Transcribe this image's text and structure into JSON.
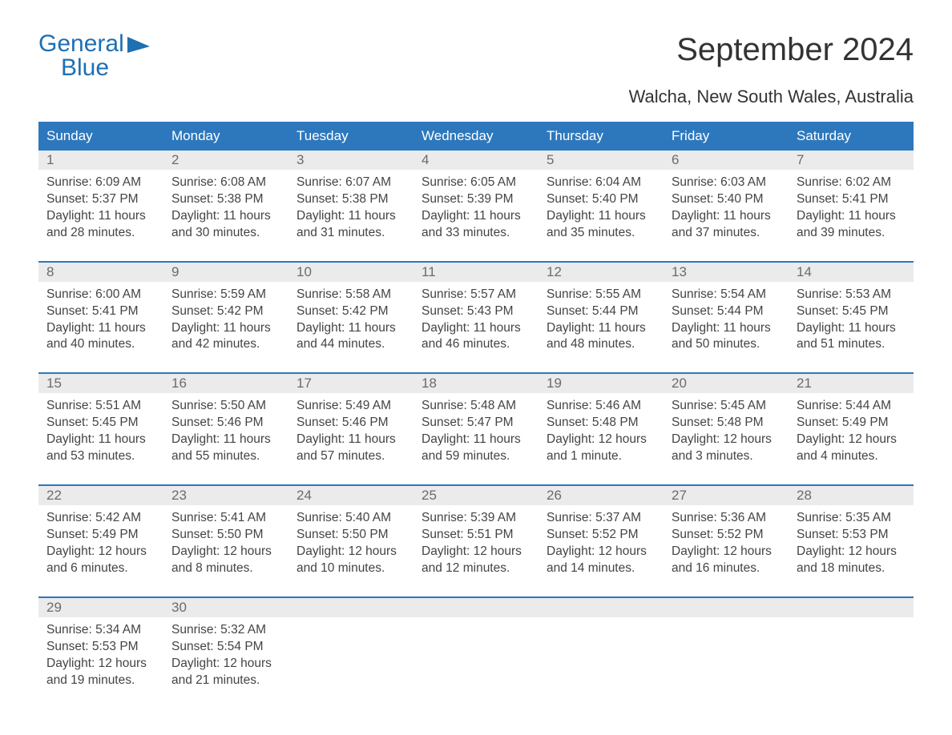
{
  "logo": {
    "line1": "General",
    "line2": "Blue",
    "text_color": "#1f6fb2",
    "shape_color": "#1f6fb2"
  },
  "title": "September 2024",
  "location": "Walcha, New South Wales, Australia",
  "colors": {
    "header_bg": "#2d78bd",
    "header_text": "#ffffff",
    "daynum_bg": "#ebebeb",
    "daynum_text": "#6b6b6b",
    "body_text": "#444444",
    "week_border": "#2d78bd",
    "page_bg": "#ffffff"
  },
  "weekdays": [
    "Sunday",
    "Monday",
    "Tuesday",
    "Wednesday",
    "Thursday",
    "Friday",
    "Saturday"
  ],
  "labels": {
    "sunrise": "Sunrise:",
    "sunset": "Sunset:",
    "daylight": "Daylight:"
  },
  "weeks": [
    [
      {
        "num": "1",
        "sunrise": "6:09 AM",
        "sunset": "5:37 PM",
        "daylight": "11 hours and 28 minutes."
      },
      {
        "num": "2",
        "sunrise": "6:08 AM",
        "sunset": "5:38 PM",
        "daylight": "11 hours and 30 minutes."
      },
      {
        "num": "3",
        "sunrise": "6:07 AM",
        "sunset": "5:38 PM",
        "daylight": "11 hours and 31 minutes."
      },
      {
        "num": "4",
        "sunrise": "6:05 AM",
        "sunset": "5:39 PM",
        "daylight": "11 hours and 33 minutes."
      },
      {
        "num": "5",
        "sunrise": "6:04 AM",
        "sunset": "5:40 PM",
        "daylight": "11 hours and 35 minutes."
      },
      {
        "num": "6",
        "sunrise": "6:03 AM",
        "sunset": "5:40 PM",
        "daylight": "11 hours and 37 minutes."
      },
      {
        "num": "7",
        "sunrise": "6:02 AM",
        "sunset": "5:41 PM",
        "daylight": "11 hours and 39 minutes."
      }
    ],
    [
      {
        "num": "8",
        "sunrise": "6:00 AM",
        "sunset": "5:41 PM",
        "daylight": "11 hours and 40 minutes."
      },
      {
        "num": "9",
        "sunrise": "5:59 AM",
        "sunset": "5:42 PM",
        "daylight": "11 hours and 42 minutes."
      },
      {
        "num": "10",
        "sunrise": "5:58 AM",
        "sunset": "5:42 PM",
        "daylight": "11 hours and 44 minutes."
      },
      {
        "num": "11",
        "sunrise": "5:57 AM",
        "sunset": "5:43 PM",
        "daylight": "11 hours and 46 minutes."
      },
      {
        "num": "12",
        "sunrise": "5:55 AM",
        "sunset": "5:44 PM",
        "daylight": "11 hours and 48 minutes."
      },
      {
        "num": "13",
        "sunrise": "5:54 AM",
        "sunset": "5:44 PM",
        "daylight": "11 hours and 50 minutes."
      },
      {
        "num": "14",
        "sunrise": "5:53 AM",
        "sunset": "5:45 PM",
        "daylight": "11 hours and 51 minutes."
      }
    ],
    [
      {
        "num": "15",
        "sunrise": "5:51 AM",
        "sunset": "5:45 PM",
        "daylight": "11 hours and 53 minutes."
      },
      {
        "num": "16",
        "sunrise": "5:50 AM",
        "sunset": "5:46 PM",
        "daylight": "11 hours and 55 minutes."
      },
      {
        "num": "17",
        "sunrise": "5:49 AM",
        "sunset": "5:46 PM",
        "daylight": "11 hours and 57 minutes."
      },
      {
        "num": "18",
        "sunrise": "5:48 AM",
        "sunset": "5:47 PM",
        "daylight": "11 hours and 59 minutes."
      },
      {
        "num": "19",
        "sunrise": "5:46 AM",
        "sunset": "5:48 PM",
        "daylight": "12 hours and 1 minute."
      },
      {
        "num": "20",
        "sunrise": "5:45 AM",
        "sunset": "5:48 PM",
        "daylight": "12 hours and 3 minutes."
      },
      {
        "num": "21",
        "sunrise": "5:44 AM",
        "sunset": "5:49 PM",
        "daylight": "12 hours and 4 minutes."
      }
    ],
    [
      {
        "num": "22",
        "sunrise": "5:42 AM",
        "sunset": "5:49 PM",
        "daylight": "12 hours and 6 minutes."
      },
      {
        "num": "23",
        "sunrise": "5:41 AM",
        "sunset": "5:50 PM",
        "daylight": "12 hours and 8 minutes."
      },
      {
        "num": "24",
        "sunrise": "5:40 AM",
        "sunset": "5:50 PM",
        "daylight": "12 hours and 10 minutes."
      },
      {
        "num": "25",
        "sunrise": "5:39 AM",
        "sunset": "5:51 PM",
        "daylight": "12 hours and 12 minutes."
      },
      {
        "num": "26",
        "sunrise": "5:37 AM",
        "sunset": "5:52 PM",
        "daylight": "12 hours and 14 minutes."
      },
      {
        "num": "27",
        "sunrise": "5:36 AM",
        "sunset": "5:52 PM",
        "daylight": "12 hours and 16 minutes."
      },
      {
        "num": "28",
        "sunrise": "5:35 AM",
        "sunset": "5:53 PM",
        "daylight": "12 hours and 18 minutes."
      }
    ],
    [
      {
        "num": "29",
        "sunrise": "5:34 AM",
        "sunset": "5:53 PM",
        "daylight": "12 hours and 19 minutes."
      },
      {
        "num": "30",
        "sunrise": "5:32 AM",
        "sunset": "5:54 PM",
        "daylight": "12 hours and 21 minutes."
      },
      null,
      null,
      null,
      null,
      null
    ]
  ]
}
